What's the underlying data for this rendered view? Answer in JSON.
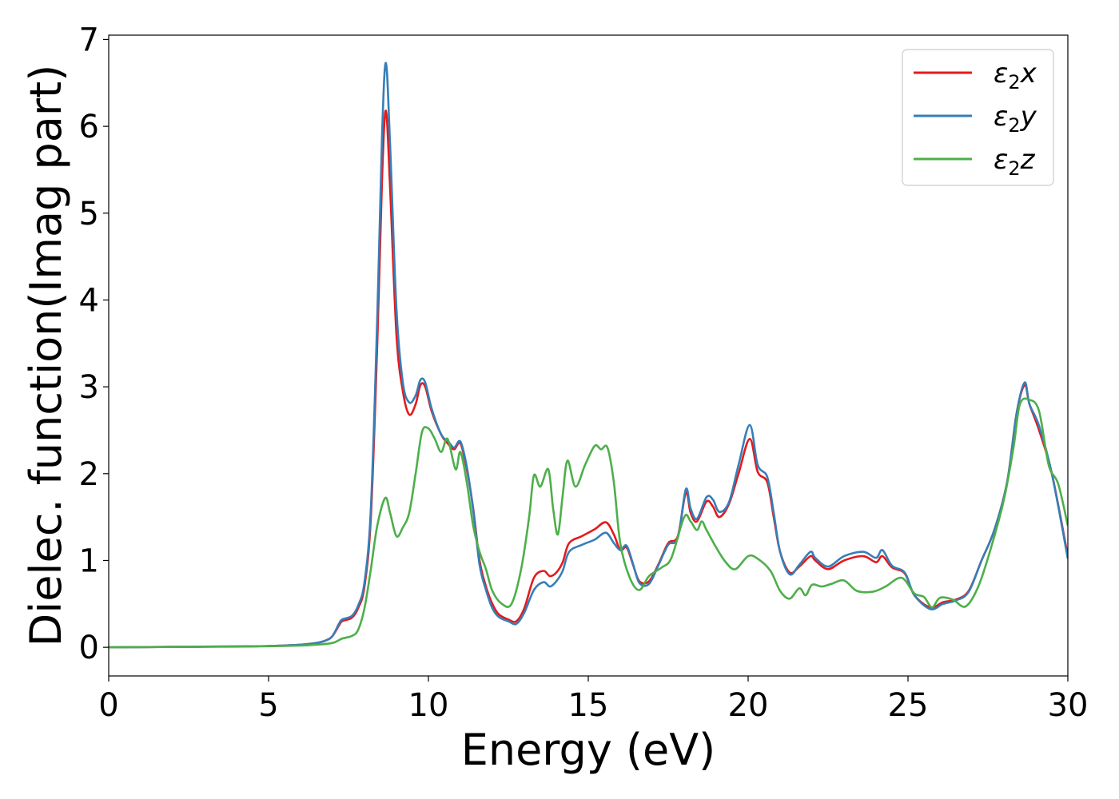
{
  "chart_data": {
    "type": "line",
    "title": "",
    "xlabel": "Energy (eV)",
    "ylabel": "Dielec. function(Imag part)",
    "xlim": [
      0,
      30
    ],
    "ylim": [
      -0.33,
      7.05
    ],
    "xticks": [
      0,
      5,
      10,
      15,
      20,
      25,
      30
    ],
    "xtick_labels": [
      "0",
      "5",
      "10",
      "15",
      "20",
      "25",
      "30"
    ],
    "yticks": [
      0,
      1,
      2,
      3,
      4,
      5,
      6,
      7
    ],
    "ytick_labels": [
      "0",
      "1",
      "2",
      "3",
      "4",
      "5",
      "6",
      "7"
    ],
    "grid": false,
    "legend_position": "top-right",
    "series": [
      {
        "name": "ε₂x",
        "legend": {
          "base": "ε",
          "sub": "2",
          "axis": "x"
        },
        "color": "#e41a1c",
        "points": [
          [
            0,
            0.0
          ],
          [
            2,
            0.005
          ],
          [
            4,
            0.01
          ],
          [
            5,
            0.015
          ],
          [
            6,
            0.03
          ],
          [
            6.5,
            0.05
          ],
          [
            6.8,
            0.08
          ],
          [
            7.0,
            0.13
          ],
          [
            7.2,
            0.25
          ],
          [
            7.3,
            0.3
          ],
          [
            7.6,
            0.34
          ],
          [
            7.8,
            0.45
          ],
          [
            8.0,
            0.7
          ],
          [
            8.2,
            1.5
          ],
          [
            8.4,
            3.5
          ],
          [
            8.55,
            5.4
          ],
          [
            8.67,
            6.18
          ],
          [
            8.8,
            5.3
          ],
          [
            9.0,
            3.6
          ],
          [
            9.2,
            2.95
          ],
          [
            9.4,
            2.68
          ],
          [
            9.6,
            2.8
          ],
          [
            9.75,
            3.02
          ],
          [
            9.9,
            3.0
          ],
          [
            10.1,
            2.72
          ],
          [
            10.4,
            2.45
          ],
          [
            10.6,
            2.35
          ],
          [
            10.8,
            2.28
          ],
          [
            11.0,
            2.35
          ],
          [
            11.2,
            2.05
          ],
          [
            11.4,
            1.6
          ],
          [
            11.6,
            1.0
          ],
          [
            11.8,
            0.7
          ],
          [
            12.0,
            0.5
          ],
          [
            12.2,
            0.38
          ],
          [
            12.5,
            0.32
          ],
          [
            12.75,
            0.3
          ],
          [
            13.0,
            0.45
          ],
          [
            13.3,
            0.8
          ],
          [
            13.6,
            0.88
          ],
          [
            13.8,
            0.82
          ],
          [
            14.0,
            0.86
          ],
          [
            14.2,
            0.98
          ],
          [
            14.4,
            1.2
          ],
          [
            14.8,
            1.28
          ],
          [
            15.2,
            1.36
          ],
          [
            15.55,
            1.44
          ],
          [
            15.8,
            1.3
          ],
          [
            16.0,
            1.12
          ],
          [
            16.2,
            1.15
          ],
          [
            16.4,
            0.95
          ],
          [
            16.6,
            0.76
          ],
          [
            16.9,
            0.76
          ],
          [
            17.2,
            0.96
          ],
          [
            17.5,
            1.2
          ],
          [
            17.8,
            1.28
          ],
          [
            18.05,
            1.78
          ],
          [
            18.2,
            1.55
          ],
          [
            18.4,
            1.45
          ],
          [
            18.7,
            1.68
          ],
          [
            18.9,
            1.62
          ],
          [
            19.1,
            1.5
          ],
          [
            19.4,
            1.65
          ],
          [
            19.7,
            2.0
          ],
          [
            20.05,
            2.4
          ],
          [
            20.3,
            2.02
          ],
          [
            20.6,
            1.9
          ],
          [
            20.8,
            1.5
          ],
          [
            21.0,
            1.1
          ],
          [
            21.3,
            0.86
          ],
          [
            21.6,
            0.93
          ],
          [
            21.95,
            1.05
          ],
          [
            22.1,
            1.0
          ],
          [
            22.5,
            0.9
          ],
          [
            23.0,
            1.0
          ],
          [
            23.6,
            1.05
          ],
          [
            24.0,
            0.98
          ],
          [
            24.2,
            1.05
          ],
          [
            24.5,
            0.92
          ],
          [
            24.9,
            0.85
          ],
          [
            25.2,
            0.6
          ],
          [
            25.7,
            0.46
          ],
          [
            26.1,
            0.52
          ],
          [
            26.5,
            0.55
          ],
          [
            26.9,
            0.65
          ],
          [
            27.3,
            1.0
          ],
          [
            27.7,
            1.35
          ],
          [
            28.1,
            1.9
          ],
          [
            28.4,
            2.7
          ],
          [
            28.65,
            3.02
          ],
          [
            28.8,
            2.8
          ],
          [
            29.1,
            2.5
          ],
          [
            29.5,
            2.0
          ],
          [
            30.0,
            1.05
          ]
        ]
      },
      {
        "name": "ε₂y",
        "legend": {
          "base": "ε",
          "sub": "2",
          "axis": "y"
        },
        "color": "#377eb8",
        "points": [
          [
            0,
            0.0
          ],
          [
            2,
            0.005
          ],
          [
            4,
            0.01
          ],
          [
            5,
            0.015
          ],
          [
            6,
            0.03
          ],
          [
            6.5,
            0.05
          ],
          [
            6.8,
            0.08
          ],
          [
            7.0,
            0.13
          ],
          [
            7.2,
            0.27
          ],
          [
            7.3,
            0.32
          ],
          [
            7.6,
            0.36
          ],
          [
            7.8,
            0.48
          ],
          [
            8.0,
            0.75
          ],
          [
            8.2,
            1.6
          ],
          [
            8.4,
            3.8
          ],
          [
            8.55,
            5.9
          ],
          [
            8.67,
            6.73
          ],
          [
            8.8,
            5.8
          ],
          [
            9.0,
            3.9
          ],
          [
            9.2,
            3.05
          ],
          [
            9.4,
            2.82
          ],
          [
            9.6,
            2.9
          ],
          [
            9.75,
            3.08
          ],
          [
            9.9,
            3.05
          ],
          [
            10.1,
            2.75
          ],
          [
            10.4,
            2.45
          ],
          [
            10.6,
            2.38
          ],
          [
            10.8,
            2.3
          ],
          [
            11.0,
            2.37
          ],
          [
            11.2,
            2.08
          ],
          [
            11.4,
            1.58
          ],
          [
            11.6,
            0.95
          ],
          [
            11.8,
            0.66
          ],
          [
            12.0,
            0.45
          ],
          [
            12.2,
            0.35
          ],
          [
            12.5,
            0.3
          ],
          [
            12.75,
            0.27
          ],
          [
            13.0,
            0.4
          ],
          [
            13.3,
            0.66
          ],
          [
            13.6,
            0.75
          ],
          [
            13.8,
            0.7
          ],
          [
            14.0,
            0.76
          ],
          [
            14.2,
            0.88
          ],
          [
            14.4,
            1.1
          ],
          [
            14.8,
            1.18
          ],
          [
            15.2,
            1.24
          ],
          [
            15.55,
            1.32
          ],
          [
            15.8,
            1.2
          ],
          [
            16.0,
            1.12
          ],
          [
            16.2,
            1.17
          ],
          [
            16.4,
            0.96
          ],
          [
            16.6,
            0.74
          ],
          [
            16.9,
            0.73
          ],
          [
            17.2,
            0.95
          ],
          [
            17.5,
            1.18
          ],
          [
            17.8,
            1.26
          ],
          [
            18.05,
            1.82
          ],
          [
            18.2,
            1.6
          ],
          [
            18.4,
            1.48
          ],
          [
            18.7,
            1.73
          ],
          [
            18.9,
            1.7
          ],
          [
            19.1,
            1.56
          ],
          [
            19.4,
            1.67
          ],
          [
            19.7,
            2.1
          ],
          [
            20.05,
            2.56
          ],
          [
            20.3,
            2.1
          ],
          [
            20.6,
            1.96
          ],
          [
            20.8,
            1.55
          ],
          [
            21.0,
            1.1
          ],
          [
            21.3,
            0.84
          ],
          [
            21.6,
            0.95
          ],
          [
            21.95,
            1.1
          ],
          [
            22.1,
            1.03
          ],
          [
            22.5,
            0.93
          ],
          [
            23.0,
            1.05
          ],
          [
            23.6,
            1.1
          ],
          [
            24.0,
            1.03
          ],
          [
            24.2,
            1.12
          ],
          [
            24.5,
            0.94
          ],
          [
            24.9,
            0.86
          ],
          [
            25.2,
            0.6
          ],
          [
            25.7,
            0.44
          ],
          [
            26.1,
            0.5
          ],
          [
            26.5,
            0.54
          ],
          [
            26.9,
            0.64
          ],
          [
            27.3,
            1.0
          ],
          [
            27.7,
            1.35
          ],
          [
            28.1,
            1.9
          ],
          [
            28.4,
            2.7
          ],
          [
            28.65,
            3.05
          ],
          [
            28.8,
            2.8
          ],
          [
            29.1,
            2.55
          ],
          [
            29.5,
            2.0
          ],
          [
            30.0,
            1.02
          ]
        ]
      },
      {
        "name": "ε₂z",
        "legend": {
          "base": "ε",
          "sub": "2",
          "axis": "z"
        },
        "color": "#4daf4a",
        "points": [
          [
            0,
            0.0
          ],
          [
            2,
            0.004
          ],
          [
            4,
            0.008
          ],
          [
            5,
            0.012
          ],
          [
            6,
            0.02
          ],
          [
            6.5,
            0.03
          ],
          [
            7.0,
            0.05
          ],
          [
            7.3,
            0.1
          ],
          [
            7.6,
            0.13
          ],
          [
            7.8,
            0.2
          ],
          [
            8.0,
            0.45
          ],
          [
            8.2,
            0.9
          ],
          [
            8.4,
            1.4
          ],
          [
            8.65,
            1.72
          ],
          [
            8.8,
            1.55
          ],
          [
            9.0,
            1.28
          ],
          [
            9.2,
            1.38
          ],
          [
            9.4,
            1.55
          ],
          [
            9.6,
            2.0
          ],
          [
            9.8,
            2.48
          ],
          [
            10.0,
            2.52
          ],
          [
            10.2,
            2.4
          ],
          [
            10.4,
            2.25
          ],
          [
            10.6,
            2.4
          ],
          [
            10.85,
            2.05
          ],
          [
            11.0,
            2.25
          ],
          [
            11.2,
            1.9
          ],
          [
            11.4,
            1.4
          ],
          [
            11.6,
            1.1
          ],
          [
            11.8,
            0.9
          ],
          [
            12.0,
            0.65
          ],
          [
            12.3,
            0.5
          ],
          [
            12.6,
            0.5
          ],
          [
            12.9,
            0.9
          ],
          [
            13.15,
            1.5
          ],
          [
            13.3,
            1.98
          ],
          [
            13.5,
            1.85
          ],
          [
            13.75,
            2.05
          ],
          [
            13.9,
            1.6
          ],
          [
            14.05,
            1.3
          ],
          [
            14.2,
            1.75
          ],
          [
            14.35,
            2.15
          ],
          [
            14.6,
            1.85
          ],
          [
            14.9,
            2.1
          ],
          [
            15.2,
            2.32
          ],
          [
            15.4,
            2.28
          ],
          [
            15.6,
            2.3
          ],
          [
            15.8,
            1.9
          ],
          [
            16.0,
            1.2
          ],
          [
            16.3,
            0.8
          ],
          [
            16.6,
            0.66
          ],
          [
            16.9,
            0.82
          ],
          [
            17.3,
            0.92
          ],
          [
            17.6,
            1.03
          ],
          [
            18.0,
            1.5
          ],
          [
            18.2,
            1.45
          ],
          [
            18.4,
            1.35
          ],
          [
            18.55,
            1.45
          ],
          [
            18.7,
            1.35
          ],
          [
            19.0,
            1.15
          ],
          [
            19.3,
            0.98
          ],
          [
            19.6,
            0.9
          ],
          [
            20.0,
            1.05
          ],
          [
            20.3,
            1.02
          ],
          [
            20.7,
            0.88
          ],
          [
            21.0,
            0.65
          ],
          [
            21.3,
            0.56
          ],
          [
            21.6,
            0.68
          ],
          [
            21.8,
            0.6
          ],
          [
            22.0,
            0.72
          ],
          [
            22.3,
            0.7
          ],
          [
            22.6,
            0.73
          ],
          [
            23.0,
            0.77
          ],
          [
            23.4,
            0.65
          ],
          [
            23.9,
            0.64
          ],
          [
            24.3,
            0.7
          ],
          [
            24.8,
            0.8
          ],
          [
            25.2,
            0.62
          ],
          [
            25.5,
            0.58
          ],
          [
            25.75,
            0.46
          ],
          [
            26.0,
            0.57
          ],
          [
            26.4,
            0.55
          ],
          [
            26.8,
            0.47
          ],
          [
            27.2,
            0.7
          ],
          [
            27.6,
            1.15
          ],
          [
            28.0,
            1.7
          ],
          [
            28.3,
            2.3
          ],
          [
            28.5,
            2.8
          ],
          [
            28.8,
            2.85
          ],
          [
            29.1,
            2.72
          ],
          [
            29.4,
            2.1
          ],
          [
            29.7,
            1.88
          ],
          [
            30.0,
            1.4
          ]
        ]
      }
    ]
  }
}
